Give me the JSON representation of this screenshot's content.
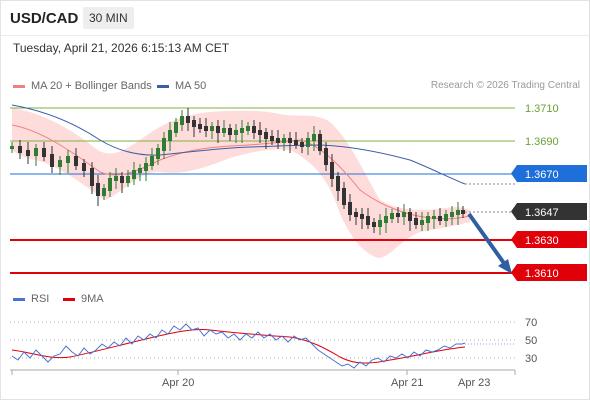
{
  "header": {
    "symbol": "USD/CAD",
    "timeframe": "30 MIN",
    "datetime": "Tuesday, April 21, 2026 6:15:13 AM CET"
  },
  "legend": {
    "ma20": "MA 20 + Bollinger Bands",
    "ma50": "MA 50",
    "credit": "Research © 2026 Trading Central",
    "rsi": "RSI",
    "ma9": "9MA"
  },
  "colors": {
    "ma20": "#f08080",
    "ma50": "#3b5ea8",
    "bands_fill": "#fdd0d0",
    "resistance": "#7cb342",
    "pivot": "#1e6fd9",
    "support": "#e0000a",
    "last_price": "#333333",
    "arrow": "#2f5fa0",
    "candle_up": "#2e7d32",
    "candle_down": "#333333",
    "rsi": "#4a72d0"
  },
  "price_levels": [
    {
      "label": "1.3710",
      "kind": "resistance"
    },
    {
      "label": "1.3690",
      "kind": "resistance"
    },
    {
      "label": "1.3670",
      "kind": "pivot"
    },
    {
      "label": "1.3647",
      "kind": "last"
    },
    {
      "label": "1.3630",
      "kind": "support"
    },
    {
      "label": "1.3610",
      "kind": "support"
    }
  ],
  "rsi_axis": [
    "70",
    "50",
    "30"
  ],
  "x_axis": [
    "Apr 20",
    "Apr 21",
    "Apr 23"
  ]
}
